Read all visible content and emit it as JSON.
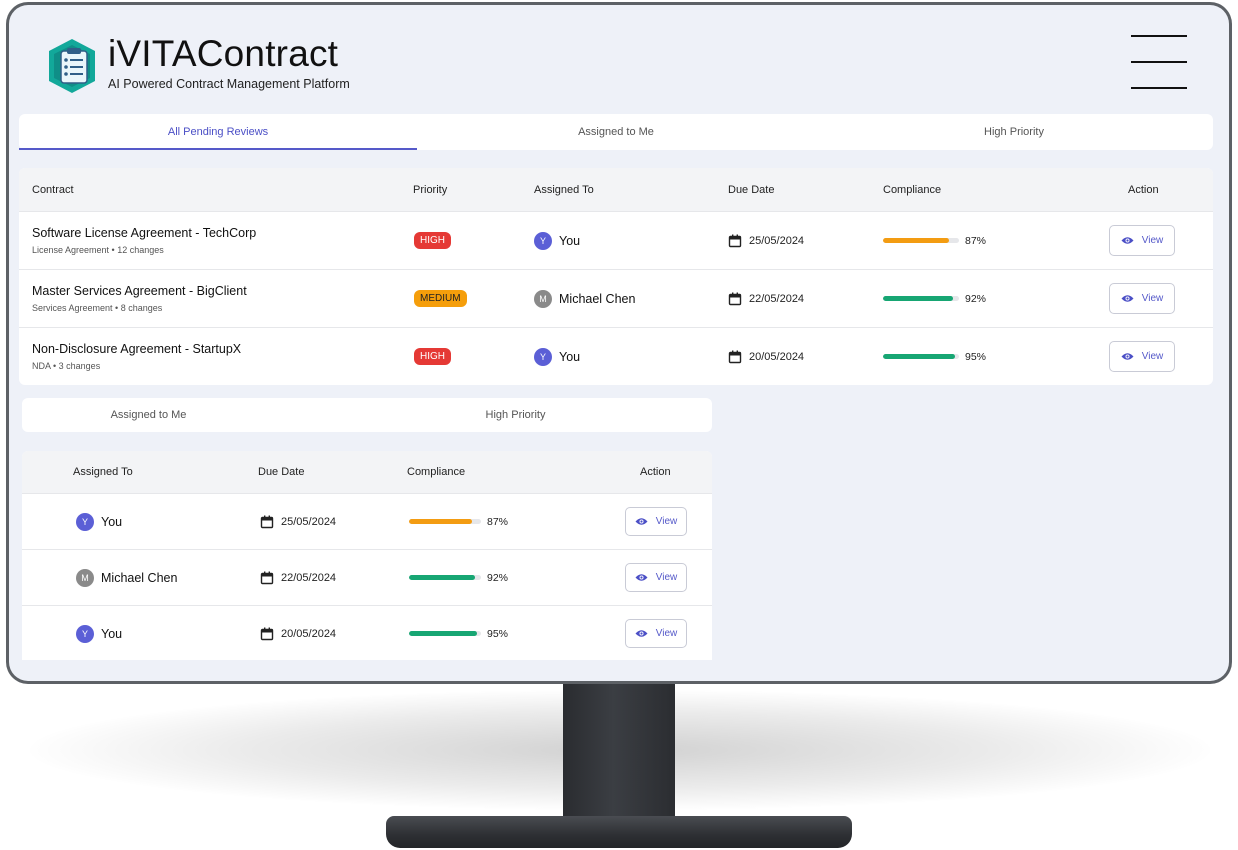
{
  "app": {
    "title": "iVITAContract",
    "subtitle": "AI Powered Contract Management Platform"
  },
  "tabs_main": [
    {
      "label": "All Pending Reviews",
      "active": true
    },
    {
      "label": "Assigned to Me",
      "active": false
    },
    {
      "label": "High Priority",
      "active": false
    }
  ],
  "tabs_secondary": [
    {
      "label": "Assigned to Me"
    },
    {
      "label": "High Priority"
    }
  ],
  "table_main": {
    "headers": {
      "contract": "Contract",
      "priority": "Priority",
      "assigned_to": "Assigned To",
      "due_date": "Due Date",
      "compliance": "Compliance",
      "action": "Action"
    },
    "rows": [
      {
        "title": "Software License Agreement - TechCorp",
        "meta": "License Agreement • 12 changes",
        "priority": "HIGH",
        "priority_level": "high",
        "avatar": "Y",
        "avatar_color": "#5b5fd6",
        "assignee": "You",
        "due": "25/05/2024",
        "compliance": 0.87,
        "compliance_label": "87%",
        "compliance_color": "#f39c12",
        "action": "View"
      },
      {
        "title": "Master Services Agreement - BigClient",
        "meta": "Services Agreement • 8 changes",
        "priority": "MEDIUM",
        "priority_level": "medium",
        "avatar": "M",
        "avatar_color": "#8a8a8a",
        "assignee": "Michael Chen",
        "due": "22/05/2024",
        "compliance": 0.92,
        "compliance_label": "92%",
        "compliance_color": "#17a673",
        "action": "View"
      },
      {
        "title": "Non-Disclosure Agreement - StartupX",
        "meta": "NDA • 3 changes",
        "priority": "HIGH",
        "priority_level": "high",
        "avatar": "Y",
        "avatar_color": "#5b5fd6",
        "assignee": "You",
        "due": "20/05/2024",
        "compliance": 0.95,
        "compliance_label": "95%",
        "compliance_color": "#17a673",
        "action": "View"
      }
    ]
  },
  "table_secondary": {
    "headers": {
      "assigned_to": "Assigned To",
      "due_date": "Due Date",
      "compliance": "Compliance",
      "action": "Action"
    },
    "rows": [
      {
        "avatar": "Y",
        "avatar_color": "#5b5fd6",
        "assignee": "You",
        "due": "25/05/2024",
        "compliance": 0.87,
        "compliance_label": "87%",
        "compliance_color": "#f39c12",
        "action": "View"
      },
      {
        "avatar": "M",
        "avatar_color": "#8a8a8a",
        "assignee": "Michael Chen",
        "due": "22/05/2024",
        "compliance": 0.92,
        "compliance_label": "92%",
        "compliance_color": "#17a673",
        "action": "View"
      },
      {
        "avatar": "Y",
        "avatar_color": "#5b5fd6",
        "assignee": "You",
        "due": "20/05/2024",
        "compliance": 0.95,
        "compliance_label": "95%",
        "compliance_color": "#17a673",
        "action": "View"
      }
    ]
  },
  "colors": {
    "accent": "#5559c9",
    "high": "#e53935",
    "medium": "#f59e0b"
  },
  "icons": {
    "logo": "contract-document-icon",
    "menu": "hamburger-menu-icon",
    "calendar": "calendar-icon",
    "view": "eye-icon"
  }
}
